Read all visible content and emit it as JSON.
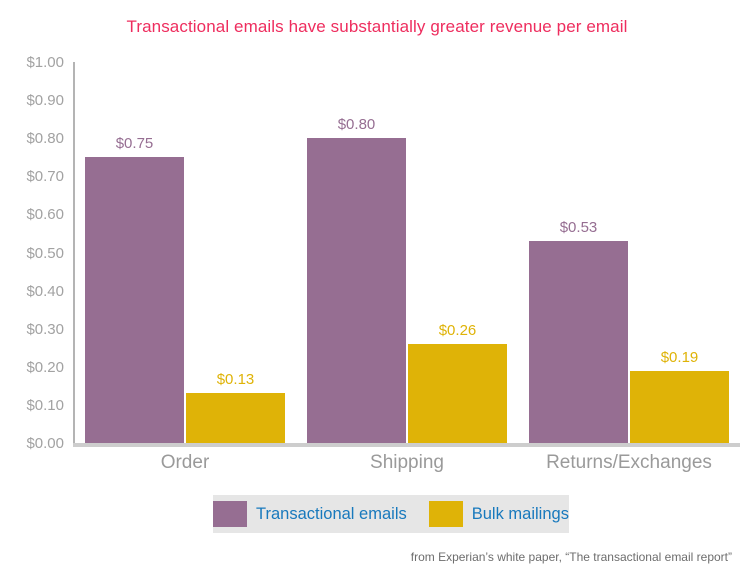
{
  "page": {
    "title": "Transactional emails have substantially greater revenue per email",
    "source_note": "from Experian’s white paper, “The transactional email report”"
  },
  "chart_data": {
    "type": "bar",
    "title": "Transactional emails have substantially greater revenue per email",
    "categories": [
      "Order",
      "Shipping",
      "Returns/Exchanges"
    ],
    "series": [
      {
        "name": "Transactional emails",
        "color": "#966e92",
        "values": [
          0.75,
          0.8,
          0.53
        ],
        "value_labels": [
          "$0.75",
          "$0.80",
          "$0.53"
        ]
      },
      {
        "name": "Bulk mailings",
        "color": "#dfb307",
        "values": [
          0.13,
          0.26,
          0.19
        ],
        "value_labels": [
          "$0.13",
          "$0.26",
          "$0.19"
        ]
      }
    ],
    "xlabel": "",
    "ylabel": "",
    "ylim": [
      0,
      1.0
    ],
    "y_tick_step": 0.1,
    "y_tick_labels": [
      "$0.00",
      "$0.10",
      "$0.20",
      "$0.30",
      "$0.40",
      "$0.50",
      "$0.60",
      "$0.70",
      "$0.80",
      "$0.90",
      "$1.00"
    ],
    "grid": false,
    "legend_position": "bottom",
    "source_note": "from Experian’s white paper, “The transactional email report”"
  },
  "colors": {
    "title": "#ee2d5e",
    "legend_text": "#1879bd",
    "legend_background": "#e6e6e6",
    "axis_tick_text": "#a2a2a2",
    "category_text": "#9a9a9a",
    "source_text": "#6d6d6d",
    "axis_line": "#b4b4b4",
    "baseline": "#cdcdcd"
  }
}
